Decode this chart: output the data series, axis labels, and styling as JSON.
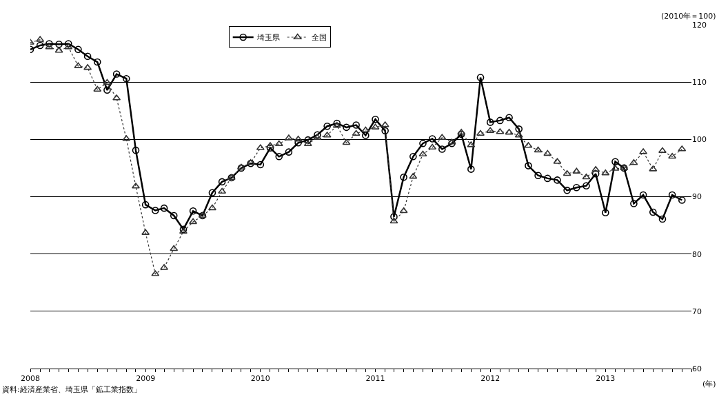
{
  "chart_data": {
    "type": "line",
    "xlabel": "(年)",
    "ylabel": "(2010年＝100)",
    "annotations": [
      "資料:経済産業省、埼玉県「鉱工業指数」"
    ],
    "x": [
      "2008-01",
      "2008-02",
      "2008-03",
      "2008-04",
      "2008-05",
      "2008-06",
      "2008-07",
      "2008-08",
      "2008-09",
      "2008-10",
      "2008-11",
      "2008-12",
      "2009-01",
      "2009-02",
      "2009-03",
      "2009-04",
      "2009-05",
      "2009-06",
      "2009-07",
      "2009-08",
      "2009-09",
      "2009-10",
      "2009-11",
      "2009-12",
      "2010-01",
      "2010-02",
      "2010-03",
      "2010-04",
      "2010-05",
      "2010-06",
      "2010-07",
      "2010-08",
      "2010-09",
      "2010-10",
      "2010-11",
      "2010-12",
      "2011-01",
      "2011-02",
      "2011-03",
      "2011-04",
      "2011-05",
      "2011-06",
      "2011-07",
      "2011-08",
      "2011-09",
      "2011-10",
      "2011-11",
      "2011-12",
      "2012-01",
      "2012-02",
      "2012-03",
      "2012-04",
      "2012-05",
      "2012-06",
      "2012-07",
      "2012-08",
      "2012-09",
      "2012-10",
      "2012-11",
      "2012-12",
      "2013-01",
      "2013-02",
      "2013-03",
      "2013-04",
      "2013-05",
      "2013-06",
      "2013-07",
      "2013-08",
      "2013-09"
    ],
    "series": [
      {
        "name": "埼玉県",
        "color": "#000000",
        "marker": "circle",
        "line_style": "solid",
        "values": [
          115.7,
          116.4,
          116.7,
          116.6,
          116.7,
          115.7,
          114.5,
          113.5,
          108.6,
          111.4,
          110.6,
          98.1,
          88.6,
          87.6,
          88.0,
          86.7,
          84.3,
          87.5,
          86.7,
          90.7,
          92.6,
          93.3,
          95.0,
          95.8,
          95.6,
          98.5,
          97.0,
          97.8,
          99.4,
          99.9,
          100.8,
          102.3,
          102.8,
          102.1,
          102.5,
          100.7,
          103.5,
          101.5,
          86.5,
          93.4,
          97.0,
          99.3,
          100.1,
          98.3,
          99.3,
          100.9,
          94.8,
          110.8,
          103.0,
          103.3,
          103.8,
          101.8,
          95.4,
          93.7,
          93.2,
          92.9,
          91.1,
          91.6,
          91.9,
          94.0,
          87.2,
          96.1,
          95.0,
          88.8,
          90.3,
          87.3,
          86.1,
          90.3,
          89.4
        ]
      },
      {
        "name": "全国",
        "color": "#333333",
        "marker": "triangle",
        "line_style": "dotted",
        "values": [
          116.9,
          117.4,
          116.1,
          115.5,
          116.1,
          112.8,
          112.5,
          108.7,
          109.9,
          107.2,
          100.1,
          91.8,
          83.7,
          76.5,
          77.6,
          80.9,
          83.9,
          85.6,
          86.7,
          88.0,
          90.9,
          93.3,
          95.1,
          95.9,
          98.5,
          98.9,
          99.2,
          100.2,
          100.0,
          99.2,
          100.3,
          100.7,
          102.4,
          99.4,
          101.0,
          101.6,
          102.1,
          102.5,
          85.7,
          87.5,
          93.5,
          97.4,
          98.6,
          100.3,
          99.5,
          101.2,
          99.0,
          101.0,
          101.5,
          101.3,
          101.2,
          100.7,
          98.9,
          98.1,
          97.5,
          96.1,
          94.0,
          94.4,
          93.4,
          94.7,
          94.1,
          94.9,
          95.0,
          95.9,
          97.8,
          94.8,
          98.0,
          97.0,
          98.3
        ]
      }
    ],
    "xlim": [
      "2008-01",
      "2013-10"
    ],
    "xticks": [
      {
        "value": "2008-01",
        "label": "2008"
      },
      {
        "value": "2008-02",
        "label": null
      },
      {
        "value": "2008-03",
        "label": null
      },
      {
        "value": "2008-04",
        "label": null
      },
      {
        "value": "2008-05",
        "label": null
      },
      {
        "value": "2008-06",
        "label": null
      },
      {
        "value": "2008-07",
        "label": null
      },
      {
        "value": "2008-08",
        "label": null
      },
      {
        "value": "2008-09",
        "label": null
      },
      {
        "value": "2008-10",
        "label": null
      },
      {
        "value": "2008-11",
        "label": null
      },
      {
        "value": "2008-12",
        "label": null
      },
      {
        "value": "2009-01",
        "label": "2009"
      },
      {
        "value": "2009-02",
        "label": null
      },
      {
        "value": "2009-03",
        "label": null
      },
      {
        "value": "2009-04",
        "label": null
      },
      {
        "value": "2009-05",
        "label": null
      },
      {
        "value": "2009-06",
        "label": null
      },
      {
        "value": "2009-07",
        "label": null
      },
      {
        "value": "2009-08",
        "label": null
      },
      {
        "value": "2009-09",
        "label": null
      },
      {
        "value": "2009-10",
        "label": null
      },
      {
        "value": "2009-11",
        "label": null
      },
      {
        "value": "2009-12",
        "label": null
      },
      {
        "value": "2010-01",
        "label": "2010"
      },
      {
        "value": "2010-02",
        "label": null
      },
      {
        "value": "2010-03",
        "label": null
      },
      {
        "value": "2010-04",
        "label": null
      },
      {
        "value": "2010-05",
        "label": null
      },
      {
        "value": "2010-06",
        "label": null
      },
      {
        "value": "2010-07",
        "label": null
      },
      {
        "value": "2010-08",
        "label": null
      },
      {
        "value": "2010-09",
        "label": null
      },
      {
        "value": "2010-10",
        "label": null
      },
      {
        "value": "2010-11",
        "label": null
      },
      {
        "value": "2010-12",
        "label": null
      },
      {
        "value": "2011-01",
        "label": "2011"
      },
      {
        "value": "2011-02",
        "label": null
      },
      {
        "value": "2011-03",
        "label": null
      },
      {
        "value": "2011-04",
        "label": null
      },
      {
        "value": "2011-05",
        "label": null
      },
      {
        "value": "2011-06",
        "label": null
      },
      {
        "value": "2011-07",
        "label": null
      },
      {
        "value": "2011-08",
        "label": null
      },
      {
        "value": "2011-09",
        "label": null
      },
      {
        "value": "2011-10",
        "label": null
      },
      {
        "value": "2011-11",
        "label": null
      },
      {
        "value": "2011-12",
        "label": null
      },
      {
        "value": "2012-01",
        "label": "2012"
      },
      {
        "value": "2012-02",
        "label": null
      },
      {
        "value": "2012-03",
        "label": null
      },
      {
        "value": "2012-04",
        "label": null
      },
      {
        "value": "2012-05",
        "label": null
      },
      {
        "value": "2012-06",
        "label": null
      },
      {
        "value": "2012-07",
        "label": null
      },
      {
        "value": "2012-08",
        "label": null
      },
      {
        "value": "2012-09",
        "label": null
      },
      {
        "value": "2012-10",
        "label": null
      },
      {
        "value": "2012-11",
        "label": null
      },
      {
        "value": "2012-12",
        "label": null
      },
      {
        "value": "2013-01",
        "label": "2013"
      },
      {
        "value": "2013-02",
        "label": null
      },
      {
        "value": "2013-03",
        "label": null
      },
      {
        "value": "2013-04",
        "label": null
      },
      {
        "value": "2013-05",
        "label": null
      },
      {
        "value": "2013-06",
        "label": null
      },
      {
        "value": "2013-07",
        "label": null
      },
      {
        "value": "2013-08",
        "label": null
      },
      {
        "value": "2013-09",
        "label": null
      },
      {
        "value": "2013-10",
        "label": null
      }
    ],
    "ylim": [
      60,
      120
    ],
    "yticks": [
      60,
      70,
      80,
      90,
      100,
      110,
      120
    ],
    "grid": "y",
    "legend": "top"
  }
}
